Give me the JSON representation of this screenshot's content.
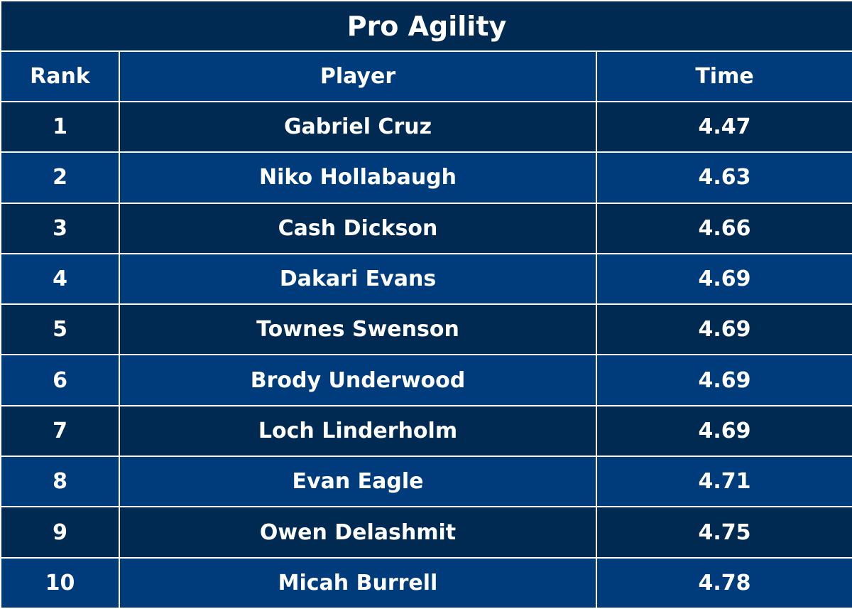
{
  "chart_data": {
    "type": "table",
    "title": "Pro Agility",
    "columns": [
      "Rank",
      "Player",
      "Time"
    ],
    "rows": [
      {
        "rank": "1",
        "player": "Gabriel Cruz",
        "time": "4.47"
      },
      {
        "rank": "2",
        "player": "Niko Hollabaugh",
        "time": "4.63"
      },
      {
        "rank": "3",
        "player": "Cash Dickson",
        "time": "4.66"
      },
      {
        "rank": "4",
        "player": "Dakari Evans",
        "time": "4.69"
      },
      {
        "rank": "5",
        "player": "Townes Swenson",
        "time": "4.69"
      },
      {
        "rank": "6",
        "player": "Brody Underwood",
        "time": "4.69"
      },
      {
        "rank": "7",
        "player": "Loch Linderholm",
        "time": "4.69"
      },
      {
        "rank": "8",
        "player": "Evan Eagle",
        "time": "4.71"
      },
      {
        "rank": "9",
        "player": "Owen Delashmit",
        "time": "4.75"
      },
      {
        "rank": "10",
        "player": "Micah Burrell",
        "time": "4.78"
      }
    ]
  },
  "colors": {
    "dark_row": "#002a52",
    "light_row": "#003c7c",
    "grid": "#ffffff",
    "text": "#ffffff"
  }
}
